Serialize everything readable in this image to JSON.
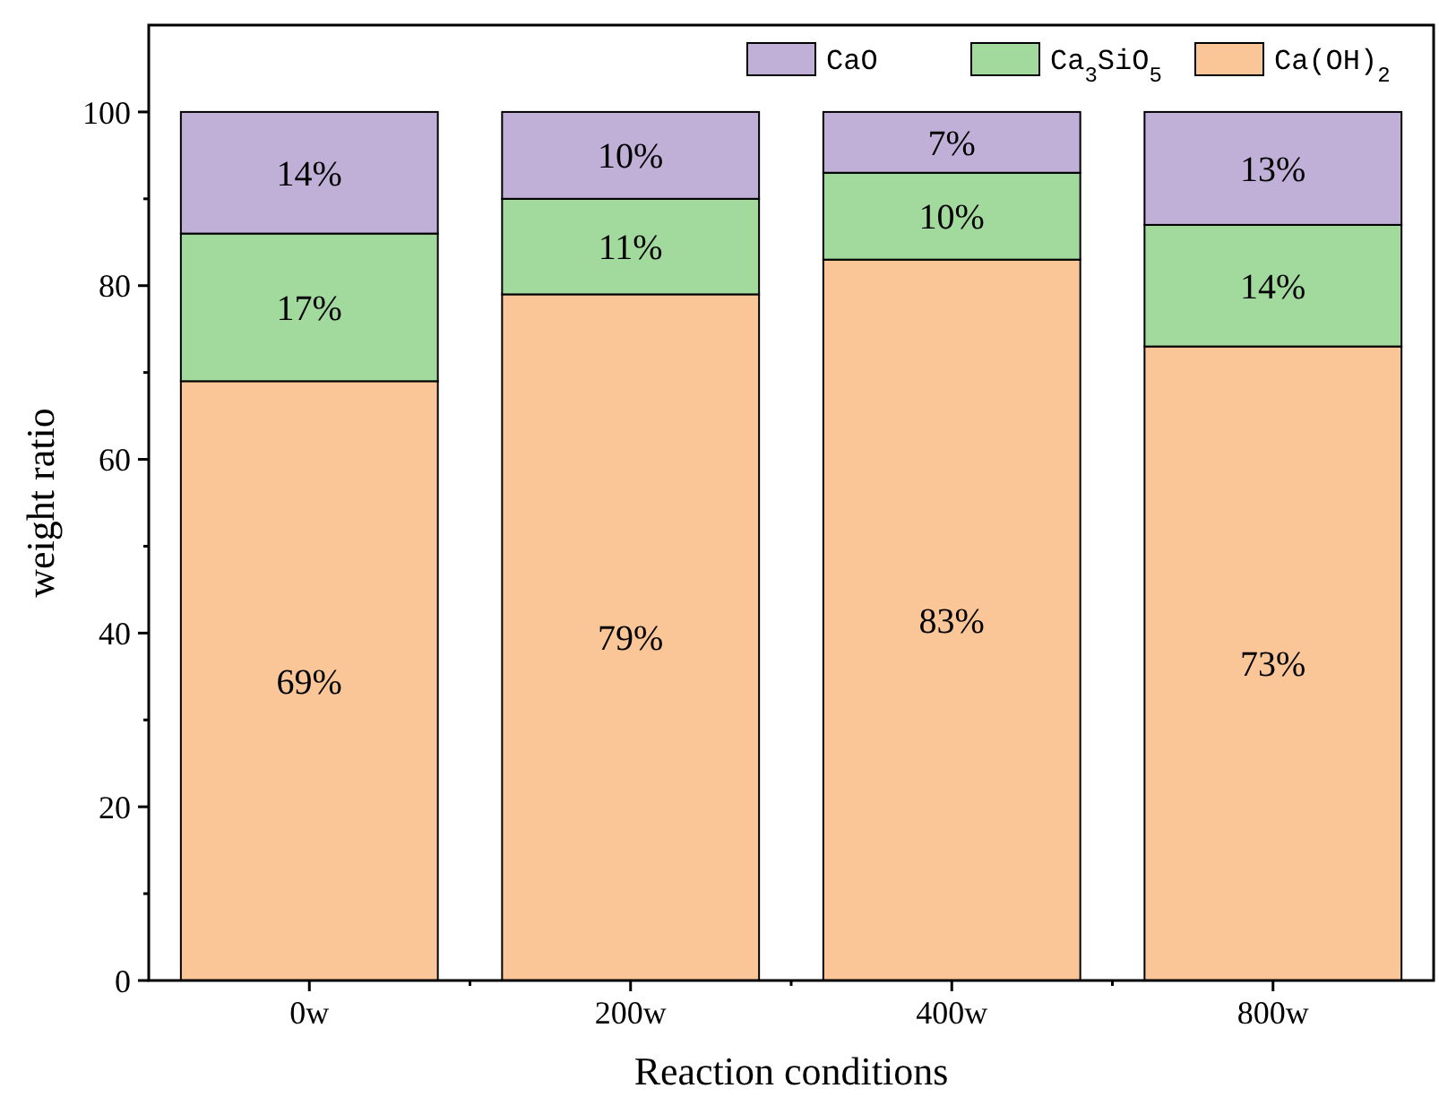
{
  "chart_data": {
    "type": "bar",
    "stacked": true,
    "xlabel": "Reaction conditions",
    "ylabel": "weight ratio",
    "categories": [
      "0w",
      "200w",
      "400w",
      "800w"
    ],
    "series": [
      {
        "name": "Ca(OH)$_{2}$",
        "color": "#fbc697",
        "values": [
          69,
          79,
          83,
          73
        ],
        "value_labels": [
          "69%",
          "79%",
          "83%",
          "73%"
        ]
      },
      {
        "name": "Ca$_{3}$SiO$_{5}$",
        "color": "#a2d99d",
        "values": [
          17,
          11,
          10,
          14
        ],
        "value_labels": [
          "17%",
          "11%",
          "10%",
          "14%"
        ]
      },
      {
        "name": "CaO",
        "color": "#c0b0d8",
        "values": [
          14,
          10,
          7,
          13
        ],
        "value_labels": [
          "14%",
          "10%",
          "7%",
          "13%"
        ]
      }
    ],
    "ylim": [
      0,
      110
    ],
    "yticks": [
      0,
      {
        "value": 10,
        "label": null
      },
      20,
      {
        "value": 30,
        "label": null
      },
      40,
      {
        "value": 50,
        "label": null
      },
      60,
      {
        "value": 70,
        "label": null
      },
      80,
      {
        "value": 90,
        "label": null
      },
      100
    ],
    "grid": false,
    "legend": "top right"
  }
}
